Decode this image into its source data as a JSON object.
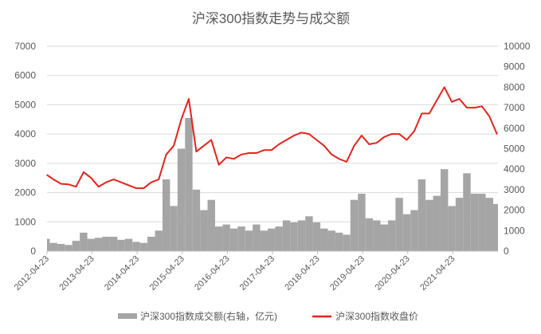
{
  "chart_data": {
    "type": "bar+line",
    "title": "沪深300指数走势与成交额",
    "left_axis": {
      "range": [
        0,
        7000
      ],
      "ticks": [
        "0",
        "1000",
        "2000",
        "3000",
        "4000",
        "5000",
        "6000",
        "7000"
      ]
    },
    "right_axis": {
      "range": [
        0,
        10000
      ],
      "ticks": [
        "0",
        "1000",
        "2000",
        "3000",
        "4000",
        "5000",
        "6000",
        "7000",
        "8000",
        "9000",
        "10000"
      ]
    },
    "x_ticks": [
      "2012-04-23",
      "2013-04-23",
      "2014-04-23",
      "2015-04-23",
      "2016-04-23",
      "2017-04-23",
      "2018-04-23",
      "2019-04-23",
      "2020-04-23",
      "2021-04-23"
    ],
    "grid": true,
    "legend_position": "bottom",
    "dates": [
      "2012-04",
      "2012-06",
      "2012-08",
      "2012-10",
      "2012-12",
      "2013-02",
      "2013-04",
      "2013-06",
      "2013-08",
      "2013-10",
      "2013-12",
      "2014-02",
      "2014-04",
      "2014-06",
      "2014-08",
      "2014-10",
      "2014-12",
      "2015-02",
      "2015-04",
      "2015-06",
      "2015-08",
      "2015-10",
      "2015-12",
      "2016-02",
      "2016-04",
      "2016-06",
      "2016-08",
      "2016-10",
      "2016-12",
      "2017-02",
      "2017-04",
      "2017-06",
      "2017-08",
      "2017-10",
      "2017-12",
      "2018-02",
      "2018-04",
      "2018-06",
      "2018-08",
      "2018-10",
      "2018-12",
      "2019-02",
      "2019-04",
      "2019-06",
      "2019-08",
      "2019-10",
      "2019-12",
      "2020-02",
      "2020-04",
      "2020-06",
      "2020-08",
      "2020-10",
      "2020-12",
      "2021-02",
      "2021-04",
      "2021-06",
      "2021-08",
      "2021-10",
      "2021-12",
      "2022-02",
      "2022-04"
    ],
    "series": [
      {
        "name": "沪深300指数成交额(右轴，亿元)",
        "type": "bar",
        "axis": "right",
        "color": "#a5a5a5",
        "values": [
          600,
          400,
          350,
          300,
          500,
          900,
          600,
          650,
          700,
          700,
          550,
          600,
          450,
          400,
          700,
          1000,
          3500,
          2200,
          5000,
          6500,
          3000,
          2000,
          2500,
          1200,
          1300,
          1100,
          1200,
          1000,
          1300,
          1000,
          1100,
          1200,
          1500,
          1400,
          1500,
          1700,
          1400,
          1100,
          1000,
          900,
          800,
          2500,
          2800,
          1600,
          1500,
          1300,
          1500,
          2600,
          1800,
          2000,
          3500,
          2500,
          2700,
          4000,
          2200,
          2600,
          3800,
          2800,
          2800,
          2600,
          2300
        ]
      },
      {
        "name": "沪深300指数收盘价",
        "type": "line",
        "axis": "left",
        "color": "#e8231b",
        "values": [
          2600,
          2450,
          2300,
          2280,
          2200,
          2700,
          2500,
          2200,
          2350,
          2450,
          2350,
          2250,
          2150,
          2150,
          2350,
          2450,
          3300,
          3600,
          4500,
          5200,
          3400,
          3600,
          3800,
          2950,
          3200,
          3150,
          3300,
          3350,
          3350,
          3450,
          3450,
          3650,
          3800,
          3950,
          4050,
          4000,
          3800,
          3600,
          3300,
          3150,
          3050,
          3600,
          3950,
          3650,
          3700,
          3900,
          4000,
          4000,
          3800,
          4100,
          4700,
          4700,
          5150,
          5600,
          5100,
          5200,
          4900,
          4900,
          4950,
          4600,
          4000
        ]
      }
    ]
  }
}
